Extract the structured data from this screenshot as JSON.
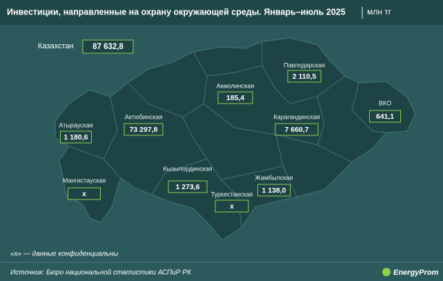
{
  "header": {
    "title": "Инвестиции, направленные на охрану окружающей среды. Январь–июль 2025",
    "unit": "млн тг"
  },
  "total": {
    "name": "Казахстан",
    "value": "87 632,8"
  },
  "regions": [
    {
      "name": "Павлодарская",
      "value": "2 110,5"
    },
    {
      "name": "Акмолинская",
      "value": "185,4"
    },
    {
      "name": "ВКО",
      "value": "641,1"
    },
    {
      "name": "Актюбинская",
      "value": "73 297,8"
    },
    {
      "name": "Атырауская",
      "value": "1 180,6"
    },
    {
      "name": "Карагандинская",
      "value": "7 660,7"
    },
    {
      "name": "Кызылординская",
      "value": "1 273,6"
    },
    {
      "name": "Мангистауская",
      "value": "x"
    },
    {
      "name": "Жамбылская",
      "value": "1 138,0"
    },
    {
      "name": "Туркестанская",
      "value": "x"
    }
  ],
  "footnote": "«x» — данные конфиденциальны",
  "source": "Источник: Бюро национальной статистики АСПиР РК",
  "logo": "EnergyProm"
}
